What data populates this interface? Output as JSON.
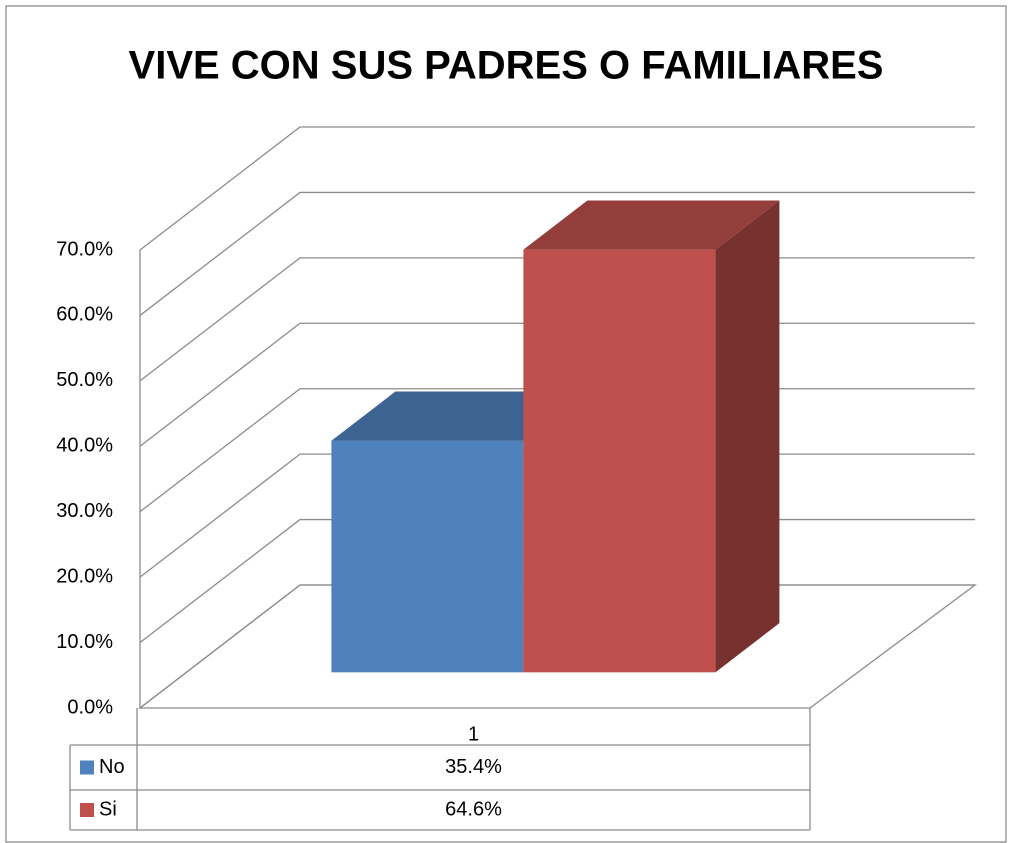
{
  "chart_data": {
    "type": "bar3d",
    "title": "VIVE CON SUS PADRES O FAMILIARES",
    "categories": [
      "1"
    ],
    "series": [
      {
        "name": "No",
        "color": "#4f81bd",
        "values": [
          35.4
        ],
        "value_labels": [
          "35.4%"
        ]
      },
      {
        "name": "Si",
        "color": "#c0504d",
        "values": [
          64.6
        ],
        "value_labels": [
          "64.6%"
        ]
      }
    ],
    "ylim": [
      0,
      70
    ],
    "yticks": [
      {
        "value": 0,
        "label": "0.0%"
      },
      {
        "value": 10,
        "label": "10.0%"
      },
      {
        "value": 20,
        "label": "20.0%"
      },
      {
        "value": 30,
        "label": "30.0%"
      },
      {
        "value": 40,
        "label": "40.0%"
      },
      {
        "value": 50,
        "label": "50.0%"
      },
      {
        "value": 60,
        "label": "60.0%"
      },
      {
        "value": 70,
        "label": "70.0%"
      }
    ],
    "grid": true,
    "legend": "data-table"
  }
}
